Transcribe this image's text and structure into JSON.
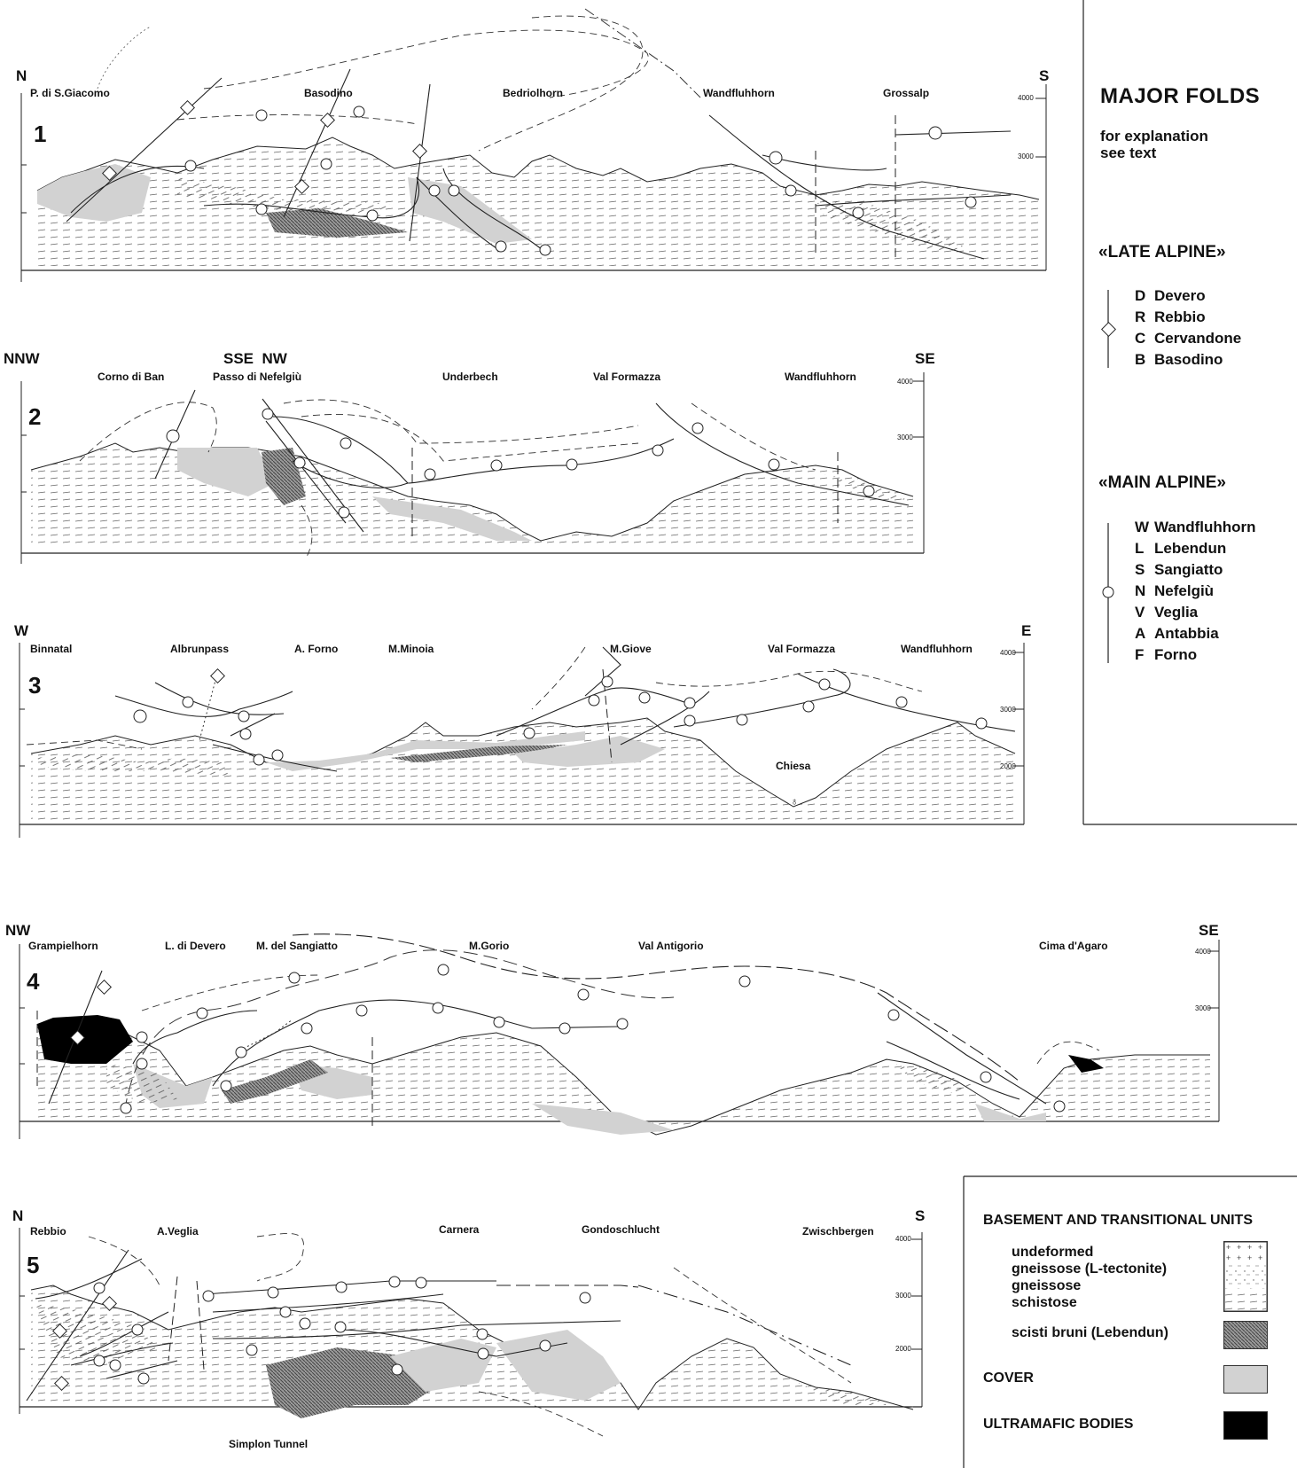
{
  "legend": {
    "title": "MAJOR FOLDS",
    "subtitle_line1": "for explanation",
    "subtitle_line2": "see text",
    "late_alpine": {
      "heading": "«LATE ALPINE»",
      "items": [
        {
          "key": "D",
          "name": "Devero"
        },
        {
          "key": "R",
          "name": "Rebbio"
        },
        {
          "key": "C",
          "name": "Cervandone"
        },
        {
          "key": "B",
          "name": "Basodino"
        }
      ]
    },
    "main_alpine": {
      "heading": "«MAIN ALPINE»",
      "items": [
        {
          "key": "W",
          "name": "Wandfluhhorn"
        },
        {
          "key": "L",
          "name": "Lebendun"
        },
        {
          "key": "S",
          "name": "Sangiatto"
        },
        {
          "key": "N",
          "name": "Nefelgiù"
        },
        {
          "key": "V",
          "name": "Veglia"
        },
        {
          "key": "A",
          "name": "Antabbia"
        },
        {
          "key": "F",
          "name": "Forno"
        }
      ]
    }
  },
  "rock_legend": {
    "basement_heading": "BASEMENT AND TRANSITIONAL UNITS",
    "texture_lines": [
      "undeformed",
      "gneissose (L-tectonite)",
      "gneissose",
      "schistose"
    ],
    "scisti_label": "scisti bruni (Lebendun)",
    "cover_label": "COVER",
    "ultramafic_label": "ULTRAMAFIC BODIES",
    "colors": {
      "cover": "#d2d2d2",
      "scisti": "#8a8a8a",
      "ultramafic": "#000000"
    }
  },
  "sections": [
    {
      "number": "1",
      "left_dir": "N",
      "right_dir": "S",
      "places": [
        "P. di S.Giacomo",
        "Basodino",
        "Bedriolhorn",
        "Wandfluhhorn",
        "Grossalp"
      ],
      "altitudes": [
        "4000",
        "3000"
      ]
    },
    {
      "number": "2",
      "left_dir": "NNW",
      "mid_dir": "SSE  NW",
      "right_dir": "SE",
      "places": [
        "Corno di Ban",
        "Passo di Nefelgiù",
        "Underbech",
        "Val Formazza",
        "Wandfluhhorn"
      ],
      "altitudes": [
        "4000",
        "3000"
      ]
    },
    {
      "number": "3",
      "left_dir": "W",
      "right_dir": "E",
      "places": [
        "Binnatal",
        "Albrunpass",
        "A. Forno",
        "M.Minoia",
        "M.Giove",
        "Val Formazza",
        "Wandfluhhorn"
      ],
      "extra_place": "Chiesa",
      "altitudes": [
        "4000",
        "3000",
        "2000"
      ]
    },
    {
      "number": "4",
      "left_dir": "NW",
      "right_dir": "SE",
      "places": [
        "Grampielhorn",
        "L. di Devero",
        "M. del Sangiatto",
        "M.Gorio",
        "Val Antigorio",
        "Cima d'Agaro"
      ],
      "altitudes": [
        "4000",
        "3000"
      ]
    },
    {
      "number": "5",
      "left_dir": "N",
      "right_dir": "S",
      "places": [
        "Rebbio",
        "A.Veglia",
        "Carnera",
        "Gondoschlucht",
        "Zwischbergen"
      ],
      "extra_place": "Simplon Tunnel",
      "altitudes": [
        "4000",
        "3000",
        "2000"
      ]
    }
  ]
}
